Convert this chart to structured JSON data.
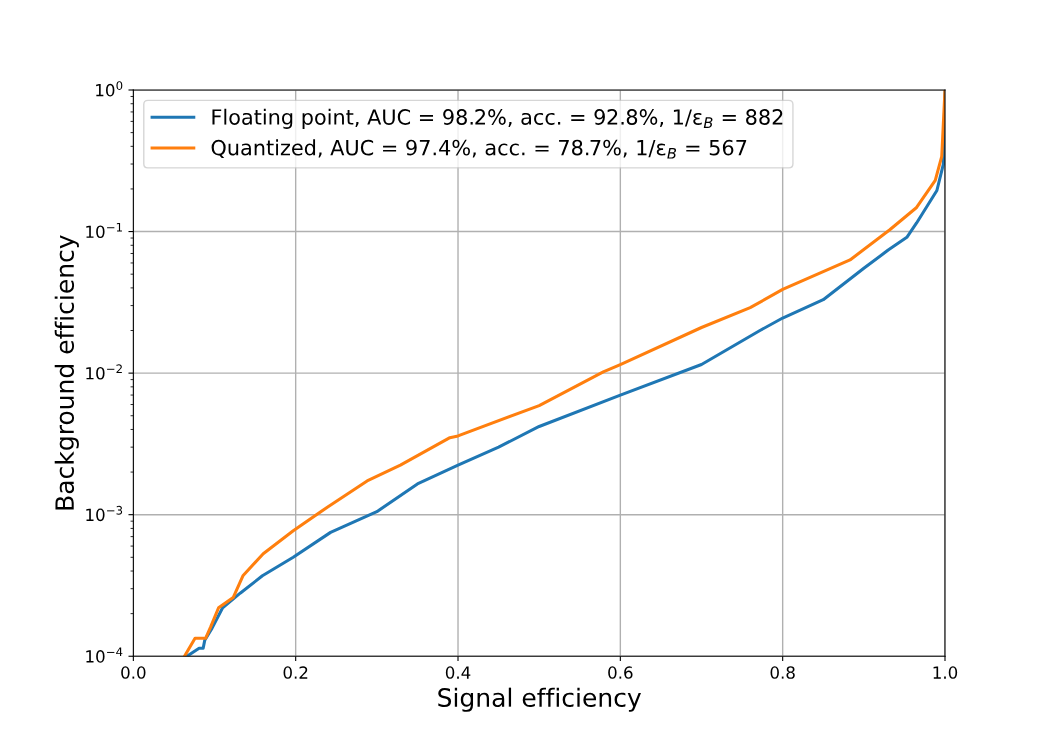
{
  "chart_data": {
    "type": "line",
    "xlabel": "Signal efficiency",
    "ylabel": "Background efficiency",
    "log": "y",
    "grid": true,
    "legend": "top left",
    "line_style": "solid",
    "xlim": [
      0.0,
      1.0
    ],
    "ylim": [
      0.0001,
      1
    ],
    "xticks": [
      {
        "value": 0.0,
        "label": "0.0"
      },
      {
        "value": 0.2,
        "label": "0.2"
      },
      {
        "value": 0.4,
        "label": "0.4"
      },
      {
        "value": 0.6,
        "label": "0.6"
      },
      {
        "value": 0.8,
        "label": "0.8"
      },
      {
        "value": 1.0,
        "label": "1.0"
      }
    ],
    "yticks": [
      {
        "value": 0.0001,
        "label": "10$^{−4}$"
      },
      {
        "value": 0.001,
        "label": "10$^{−3}$"
      },
      {
        "value": 0.01,
        "label": "10$^{−2}$"
      },
      {
        "value": 0.1,
        "label": "10$^{−1}$"
      },
      {
        "value": 1,
        "label": "10$^{0}$"
      }
    ],
    "series": [
      {
        "name": "Floating point, AUC = 98.2%, acc. = 92.8%, 1/ε$_{B}$ = 882",
        "color": "#1f77b4",
        "x": [
          0.066,
          0.081,
          0.086,
          0.088,
          0.097,
          0.11,
          0.132,
          0.159,
          0.197,
          0.243,
          0.3,
          0.35,
          0.4,
          0.45,
          0.5,
          0.6,
          0.7,
          0.772,
          0.8,
          0.85,
          0.9,
          0.93,
          0.953,
          0.965,
          0.99,
          0.998,
          1.0
        ],
        "values": [
          0.0001,
          0.000114,
          0.000114,
          0.00013,
          0.000158,
          0.00022,
          0.00028,
          0.00037,
          0.0005,
          0.00075,
          0.00105,
          0.00165,
          0.00224,
          0.003,
          0.0042,
          0.007,
          0.0115,
          0.02,
          0.0245,
          0.033,
          0.055,
          0.074,
          0.091,
          0.115,
          0.195,
          0.3,
          1.0
        ]
      },
      {
        "name": "Quantized, AUC = 97.4%, acc. = 78.7%, 1/ε$_{B}$ = 567",
        "color": "#ff7f0e",
        "x": [
          0.063,
          0.076,
          0.089,
          0.095,
          0.105,
          0.123,
          0.135,
          0.16,
          0.197,
          0.239,
          0.288,
          0.329,
          0.39,
          0.4,
          0.5,
          0.579,
          0.6,
          0.7,
          0.76,
          0.8,
          0.883,
          0.932,
          0.965,
          0.988,
          0.996,
          1.0
        ],
        "values": [
          0.0001,
          0.000134,
          0.000134,
          0.00016,
          0.00022,
          0.00026,
          0.00037,
          0.00053,
          0.00077,
          0.00113,
          0.00173,
          0.00224,
          0.0035,
          0.0036,
          0.0059,
          0.0102,
          0.0115,
          0.021,
          0.029,
          0.039,
          0.063,
          0.103,
          0.148,
          0.23,
          0.34,
          1.0
        ]
      }
    ]
  }
}
